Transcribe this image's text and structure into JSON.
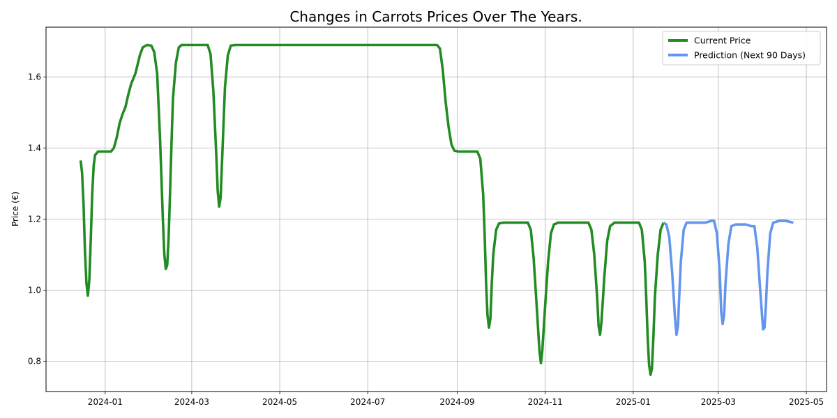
{
  "chart_data": {
    "type": "line",
    "title": "Changes in Carrots Prices Over The Years.",
    "xlabel": "",
    "ylabel": "Price (€)",
    "x_range": [
      "2023-11-21",
      "2025-05-15"
    ],
    "ylim": [
      0.715,
      1.74
    ],
    "grid": true,
    "legend_position": "top-right",
    "x_ticks": [
      {
        "date": "2024-01-01",
        "label": "2024-01"
      },
      {
        "date": "2024-03-01",
        "label": "2024-03"
      },
      {
        "date": "2024-05-01",
        "label": "2024-05"
      },
      {
        "date": "2024-07-01",
        "label": "2024-07"
      },
      {
        "date": "2024-09-01",
        "label": "2024-09"
      },
      {
        "date": "2024-11-01",
        "label": "2024-11"
      },
      {
        "date": "2025-01-01",
        "label": "2025-01"
      },
      {
        "date": "2025-03-01",
        "label": "2025-03"
      },
      {
        "date": "2025-05-01",
        "label": "2025-05"
      }
    ],
    "y_ticks": [
      {
        "value": 0.8,
        "label": "0.8"
      },
      {
        "value": 1.0,
        "label": "1.0"
      },
      {
        "value": 1.2,
        "label": "1.2"
      },
      {
        "value": 1.4,
        "label": "1.4"
      },
      {
        "value": 1.6,
        "label": "1.6"
      }
    ],
    "series": [
      {
        "name": "Current Price",
        "color": "#228B22",
        "points": [
          [
            "2023-12-15",
            1.365
          ],
          [
            "2023-12-16",
            1.33
          ],
          [
            "2023-12-17",
            1.24
          ],
          [
            "2023-12-18",
            1.11
          ],
          [
            "2023-12-19",
            1.02
          ],
          [
            "2023-12-20",
            0.985
          ],
          [
            "2023-12-21",
            1.03
          ],
          [
            "2023-12-22",
            1.14
          ],
          [
            "2023-12-23",
            1.27
          ],
          [
            "2023-12-24",
            1.35
          ],
          [
            "2023-12-25",
            1.38
          ],
          [
            "2023-12-27",
            1.39
          ],
          [
            "2024-01-05",
            1.39
          ],
          [
            "2024-01-07",
            1.4
          ],
          [
            "2024-01-09",
            1.43
          ],
          [
            "2024-01-11",
            1.47
          ],
          [
            "2024-01-13",
            1.495
          ],
          [
            "2024-01-15",
            1.515
          ],
          [
            "2024-01-17",
            1.55
          ],
          [
            "2024-01-19",
            1.58
          ],
          [
            "2024-01-22",
            1.61
          ],
          [
            "2024-01-25",
            1.66
          ],
          [
            "2024-01-27",
            1.683
          ],
          [
            "2024-01-30",
            1.69
          ],
          [
            "2024-02-02",
            1.688
          ],
          [
            "2024-02-04",
            1.67
          ],
          [
            "2024-02-06",
            1.61
          ],
          [
            "2024-02-08",
            1.43
          ],
          [
            "2024-02-10",
            1.2
          ],
          [
            "2024-02-11",
            1.1
          ],
          [
            "2024-02-12",
            1.06
          ],
          [
            "2024-02-13",
            1.07
          ],
          [
            "2024-02-14",
            1.15
          ],
          [
            "2024-02-15",
            1.28
          ],
          [
            "2024-02-16",
            1.42
          ],
          [
            "2024-02-17",
            1.54
          ],
          [
            "2024-02-19",
            1.64
          ],
          [
            "2024-02-21",
            1.683
          ],
          [
            "2024-02-23",
            1.69
          ],
          [
            "2024-03-12",
            1.69
          ],
          [
            "2024-03-14",
            1.665
          ],
          [
            "2024-03-16",
            1.56
          ],
          [
            "2024-03-18",
            1.38
          ],
          [
            "2024-03-19",
            1.28
          ],
          [
            "2024-03-20",
            1.235
          ],
          [
            "2024-03-21",
            1.26
          ],
          [
            "2024-03-22",
            1.36
          ],
          [
            "2024-03-24",
            1.57
          ],
          [
            "2024-03-26",
            1.66
          ],
          [
            "2024-03-28",
            1.688
          ],
          [
            "2024-03-31",
            1.69
          ],
          [
            "2024-08-18",
            1.69
          ],
          [
            "2024-08-20",
            1.68
          ],
          [
            "2024-08-22",
            1.62
          ],
          [
            "2024-08-24",
            1.53
          ],
          [
            "2024-08-26",
            1.46
          ],
          [
            "2024-08-28",
            1.41
          ],
          [
            "2024-08-30",
            1.393
          ],
          [
            "2024-09-02",
            1.39
          ],
          [
            "2024-09-15",
            1.39
          ],
          [
            "2024-09-17",
            1.37
          ],
          [
            "2024-09-19",
            1.27
          ],
          [
            "2024-09-20",
            1.16
          ],
          [
            "2024-09-21",
            1.02
          ],
          [
            "2024-09-22",
            0.93
          ],
          [
            "2024-09-23",
            0.895
          ],
          [
            "2024-09-24",
            0.92
          ],
          [
            "2024-09-25",
            1.02
          ],
          [
            "2024-09-26",
            1.1
          ],
          [
            "2024-09-28",
            1.17
          ],
          [
            "2024-09-30",
            1.188
          ],
          [
            "2024-10-03",
            1.19
          ],
          [
            "2024-10-20",
            1.19
          ],
          [
            "2024-10-22",
            1.17
          ],
          [
            "2024-10-24",
            1.09
          ],
          [
            "2024-10-26",
            0.96
          ],
          [
            "2024-10-28",
            0.83
          ],
          [
            "2024-10-29",
            0.795
          ],
          [
            "2024-10-30",
            0.83
          ],
          [
            "2024-11-01",
            0.96
          ],
          [
            "2024-11-03",
            1.08
          ],
          [
            "2024-11-05",
            1.16
          ],
          [
            "2024-11-07",
            1.185
          ],
          [
            "2024-11-10",
            1.19
          ],
          [
            "2024-12-01",
            1.19
          ],
          [
            "2024-12-03",
            1.17
          ],
          [
            "2024-12-05",
            1.1
          ],
          [
            "2024-12-07",
            0.98
          ],
          [
            "2024-12-08",
            0.9
          ],
          [
            "2024-12-09",
            0.875
          ],
          [
            "2024-12-10",
            0.91
          ],
          [
            "2024-12-12",
            1.04
          ],
          [
            "2024-12-14",
            1.14
          ],
          [
            "2024-12-16",
            1.18
          ],
          [
            "2024-12-19",
            1.19
          ],
          [
            "2025-01-05",
            1.19
          ],
          [
            "2025-01-07",
            1.17
          ],
          [
            "2025-01-09",
            1.08
          ],
          [
            "2025-01-10",
            0.98
          ],
          [
            "2025-01-11",
            0.87
          ],
          [
            "2025-01-12",
            0.79
          ],
          [
            "2025-01-13",
            0.762
          ],
          [
            "2025-01-14",
            0.78
          ],
          [
            "2025-01-15",
            0.87
          ],
          [
            "2025-01-16",
            0.98
          ],
          [
            "2025-01-18",
            1.1
          ],
          [
            "2025-01-20",
            1.17
          ],
          [
            "2025-01-22",
            1.19
          ]
        ]
      },
      {
        "name": "Prediction (Next 90 Days)",
        "color": "#6495ED",
        "points": [
          [
            "2025-01-22",
            1.19
          ],
          [
            "2025-01-24",
            1.185
          ],
          [
            "2025-01-26",
            1.15
          ],
          [
            "2025-01-28",
            1.05
          ],
          [
            "2025-01-30",
            0.92
          ],
          [
            "2025-01-31",
            0.875
          ],
          [
            "2025-02-01",
            0.9
          ],
          [
            "2025-02-02",
            0.99
          ],
          [
            "2025-02-03",
            1.08
          ],
          [
            "2025-02-05",
            1.17
          ],
          [
            "2025-02-07",
            1.19
          ],
          [
            "2025-02-20",
            1.19
          ],
          [
            "2025-02-24",
            1.195
          ],
          [
            "2025-02-26",
            1.195
          ],
          [
            "2025-02-28",
            1.16
          ],
          [
            "2025-03-02",
            1.05
          ],
          [
            "2025-03-03",
            0.94
          ],
          [
            "2025-03-04",
            0.905
          ],
          [
            "2025-03-05",
            0.93
          ],
          [
            "2025-03-06",
            1.02
          ],
          [
            "2025-03-08",
            1.13
          ],
          [
            "2025-03-10",
            1.18
          ],
          [
            "2025-03-13",
            1.185
          ],
          [
            "2025-03-20",
            1.185
          ],
          [
            "2025-03-24",
            1.18
          ],
          [
            "2025-03-26",
            1.18
          ],
          [
            "2025-03-28",
            1.12
          ],
          [
            "2025-03-30",
            1.0
          ],
          [
            "2025-04-01",
            0.89
          ],
          [
            "2025-04-02",
            0.895
          ],
          [
            "2025-04-03",
            0.96
          ],
          [
            "2025-04-04",
            1.05
          ],
          [
            "2025-04-06",
            1.16
          ],
          [
            "2025-04-08",
            1.19
          ],
          [
            "2025-04-12",
            1.195
          ],
          [
            "2025-04-17",
            1.195
          ],
          [
            "2025-04-22",
            1.19
          ]
        ]
      }
    ]
  }
}
